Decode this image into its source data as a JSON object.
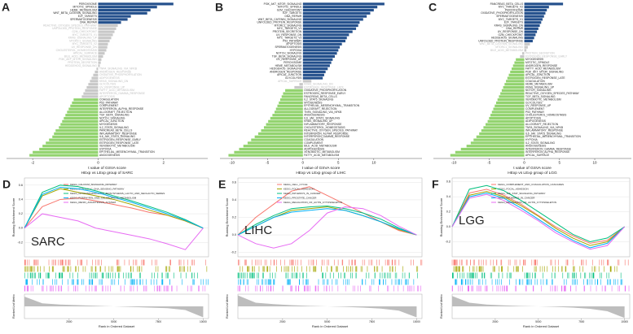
{
  "chart_data": [
    {
      "type": "bar",
      "orientation": "horizontal",
      "panel": "A",
      "xlabel": "t value of GSVA score",
      "sublabel": "HExp vs LExp group of SARC",
      "xlim": [
        -2.8,
        3.35
      ],
      "xticks": [
        -2,
        0,
        2
      ],
      "series": [
        {
          "color": "#24508c",
          "label_color": "#222222",
          "categories": [
            "PEROXISOME",
            "MITOTIC_SPINDLE",
            "HEME_METABOLISM",
            "WNT_BETA_CATENIN_SIGNALING",
            "E2F_TARGETS",
            "SPERMATOGENESIS",
            "DNA_REPAIR"
          ],
          "values": [
            2.3,
            1.8,
            1.6,
            1.5,
            1.0,
            0.9,
            0.7
          ]
        },
        {
          "color": "#c8c8c8",
          "label_color": "#bdbdbd",
          "categories": [
            "REACTIVE_OXYGEN_SPECIES_PATHWAY",
            "UNFOLDED_PROTEIN_RESPONSE",
            "G2M_CHECKPOINT",
            "MYC_TARGETS_V1",
            "KRAS_SIGNALING_UP",
            "MTORC1_SIGNALING",
            "MYC_TARGETS_V2",
            "UV_RESPONSE_DN",
            "CHOLESTEROL_HOMEOSTASIS",
            "APICAL_SURFACE",
            "BILE_ACID_METABOLISM",
            "PI3K_AKT_MTOR_SIGNALING",
            "PROTEIN_SECRETION",
            "HEDGEHOG_SIGNALING",
            "TNFA_SIGNALING_VIA_NFKB",
            "ANDROGEN_RESPONSE",
            "OXIDATIVE_PHOSPHORYLATION",
            "ADIPOGENESIS",
            "KRAS_SIGNALING_DN",
            "GLYCOLYSIS",
            "UV_RESPONSE_UP",
            "FATTY_ACID_METABOLISM",
            "INTERFERON_GAMMA_RESPONSE",
            "APOPTOSIS"
          ],
          "values": [
            0.6,
            0.55,
            0.5,
            0.45,
            0.4,
            0.35,
            0.3,
            0.28,
            0.25,
            0.2,
            0.15,
            0.1,
            0.08,
            0.05,
            -0.05,
            -0.1,
            -0.15,
            -0.2,
            -0.25,
            -0.3,
            -0.35,
            -0.4,
            -0.45,
            -0.5
          ]
        },
        {
          "color": "#92d36e",
          "label_color": "#222222",
          "categories": [
            "COAGULATION",
            "P53_PATHWAY",
            "COMPLEMENT",
            "INTERFERON_ALPHA_RESPONSE",
            "ALLOGRAFT_REJECTION",
            "TGF_BETA_SIGNALING",
            "NOTCH_SIGNALING",
            "APICAL_JUNCTION",
            "MYOGENESIS",
            "IL2_STAT5_SIGNALING",
            "PANCREAS_BETA_CELLS",
            "INFLAMMATORY_RESPONSE",
            "IL6_JAK_STAT3_SIGNALING",
            "ESTROGEN_RESPONSE_EARLY",
            "ESTROGEN_RESPONSE_LATE",
            "XENOBIOTIC_METABOLISM",
            "HYPOXIA",
            "EPITHELIAL_MESENCHYMAL_TRANSITION",
            "ANGIOGENESIS"
          ],
          "values": [
            -0.75,
            -0.8,
            -0.85,
            -0.9,
            -0.95,
            -1.0,
            -1.05,
            -1.1,
            -1.15,
            -1.2,
            -1.3,
            -1.35,
            -1.4,
            -1.5,
            -1.6,
            -1.7,
            -1.8,
            -2.0,
            -2.1
          ]
        }
      ]
    },
    {
      "type": "bar",
      "orientation": "horizontal",
      "panel": "B",
      "xlabel": "t value of GSVA score",
      "sublabel": "HExp vs LExp group of LIHC",
      "xlim": [
        -11.7,
        16.8
      ],
      "xticks": [
        -10,
        -5,
        0,
        5,
        10
      ],
      "series": [
        {
          "color": "#24508c",
          "label_color": "#222222",
          "categories": [
            "PI3K_AKT_MTOR_SIGNALING",
            "MITOTIC_SPINDLE",
            "G2M_CHECKPOINT",
            "E2F_TARGETS",
            "DNA_REPAIR",
            "WNT_BETA_CATENIN_SIGNALING",
            "UNFOLDED_PROTEIN_RESPONSE",
            "MTORC1_SIGNALING",
            "MYC_TARGETS_V1",
            "PROTEIN_SECRETION",
            "UV_RESPONSE_DN",
            "MYC_TARGETS_V2",
            "P53_PATHWAY",
            "APOPTOSIS",
            "SPERMATOGENESIS",
            "HYPOXIA",
            "NOTCH_SIGNALING",
            "TGF_BETA_SIGNALING",
            "UV_RESPONSE_UP",
            "PEROXISOME",
            "HEME_METABOLISM",
            "HEDGEHOG_SIGNALING",
            "ANDROGEN_RESPONSE",
            "APICAL_JUNCTION",
            "GLYCOLYSIS"
          ],
          "values": [
            11.5,
            10.5,
            10,
            9.5,
            9,
            8.5,
            8,
            7.8,
            7.5,
            7,
            6.5,
            6.2,
            6,
            5.5,
            5.2,
            5,
            4.8,
            4.5,
            4.2,
            4,
            3.8,
            3.5,
            3.2,
            3,
            2.8
          ]
        },
        {
          "color": "#c8c8c8",
          "label_color": "#bdbdbd",
          "categories": [
            "APICAL_SURFACE",
            "KRAS_SIGNALING_DN",
            "ESTROGEN_RESPONSE_LATE"
          ],
          "values": [
            1.2,
            -0.5,
            -1.2
          ]
        },
        {
          "color": "#92d36e",
          "label_color": "#222222",
          "categories": [
            "OXIDATIVE_PHOSPHORYLATION",
            "ESTROGEN_RESPONSE_EARLY",
            "PANCREAS_BETA_CELLS",
            "IL2_STAT5_SIGNALING",
            "MYOGENESIS",
            "EPITHELIAL_MESENCHYMAL_TRANSITION",
            "ALLOGRAFT_REJECTION",
            "TNFA_SIGNALING_VIA_NFKB",
            "ANGIOGENESIS",
            "IL6_JAK_STAT3_SIGNALING",
            "KRAS_SIGNALING_UP",
            "INFLAMMATORY_RESPONSE",
            "CHOLESTEROL_HOMEOSTASIS",
            "REACTIVE_OXYGEN_SPECIES_PATHWAY",
            "INTERFERON_ALPHA_RESPONSE",
            "INTERFERON_GAMMA_RESPONSE",
            "COAGULATION",
            "COMPLEMENT",
            "BILE_ACID_METABOLISM",
            "ADIPOGENESIS",
            "XENOBIOTIC_METABOLISM",
            "FATTY_ACID_METABOLISM"
          ],
          "values": [
            -2.5,
            -2.8,
            -3.0,
            -3.2,
            -3.4,
            -3.6,
            -3.8,
            -4,
            -4.3,
            -4.6,
            -4.9,
            -5.2,
            -5.5,
            -5.9,
            -6.3,
            -6.8,
            -7.3,
            -7.8,
            -8.4,
            -9,
            -9.7,
            -10.5
          ]
        }
      ]
    },
    {
      "type": "bar",
      "orientation": "horizontal",
      "panel": "C",
      "xlabel": "t value of GSVA score",
      "sublabel": "HExp vs LExp group of LGG",
      "xlim": [
        -12.9,
        15.2
      ],
      "xticks": [
        -10,
        -5,
        0,
        5,
        10
      ],
      "series": [
        {
          "color": "#24508c",
          "label_color": "#222222",
          "categories": [
            "PANCREAS_BETA_CELLS",
            "MYC_TARGETS_V2",
            "PEROXISOME",
            "OXIDATIVE_PHOSPHORYLATION",
            "SPERMATOGENESIS",
            "MYC_TARGETS_V1",
            "E2F_TARGETS",
            "KRAS_SIGNALING_DN",
            "DNA_REPAIR",
            "UV_RESPONSE_DN",
            "G2M_CHECKPOINT",
            "HEDGEHOG_SIGNALING",
            "UNFOLDED_PROTEIN_RESPONSE"
          ],
          "values": [
            5.5,
            3.5,
            3.2,
            3.0,
            2.8,
            2.6,
            2.4,
            2.2,
            2.0,
            1.8,
            1.6,
            1.4,
            1.2
          ]
        },
        {
          "color": "#c8c8c8",
          "label_color": "#bdbdbd",
          "categories": [
            "WNT_BETA_CATENIN_SIGNALING",
            "MTORC1_SIGNALING",
            "BILE_ACID_METABOLISM",
            "PROTEIN_SECRETION",
            "ESTROGEN_RESPONSE_EARLY"
          ],
          "values": [
            0.8,
            0.5,
            0.3,
            -0.3,
            -0.6
          ]
        },
        {
          "color": "#92d36e",
          "label_color": "#222222",
          "categories": [
            "MYOGENESIS",
            "MITOTIC_SPINDLE",
            "ANDROGEN_RESPONSE",
            "FATTY_ACID_METABOLISM",
            "PI3K_AKT_MTOR_SIGNALING",
            "APICAL_JUNCTION",
            "ESTROGEN_RESPONSE_LATE",
            "COAGULATION",
            "HEME_METABOLISM",
            "KRAS_SIGNALING_UP",
            "NOTCH_SIGNALING",
            "REACTIVE_OXYGEN_SPECIES_PATHWAY",
            "TGF_BETA_SIGNALING",
            "XENOBIOTIC_METABOLISM",
            "GLYCOLYSIS",
            "UV_RESPONSE_UP",
            "COMPLEMENT",
            "P53_PATHWAY",
            "CHOLESTEROL_HOMEOSTASIS",
            "APOPTOSIS",
            "ADIPOGENESIS",
            "ALLOGRAFT_REJECTION",
            "TNFA_SIGNALING_VIA_NFKB",
            "INFLAMMATORY_RESPONSE",
            "IL6_JAK_STAT3_SIGNALING",
            "EPITHELIAL_MESENCHYMAL_TRANSITION",
            "HYPOXIA",
            "IL2_STAT5_SIGNALING",
            "ANGIOGENESIS",
            "INTERFERON_GAMMA_RESPONSE",
            "INTERFERON_ALPHA_RESPONSE",
            "APICAL_SURFACE"
          ],
          "values": [
            -1.2,
            -1.4,
            -1.6,
            -1.8,
            -2.0,
            -2.2,
            -2.4,
            -2.6,
            -2.8,
            -3.0,
            -3.2,
            -3.4,
            -3.6,
            -3.8,
            -4.0,
            -4.2,
            -4.4,
            -4.6,
            -4.8,
            -5.0,
            -5.2,
            -5.5,
            -5.8,
            -6.1,
            -6.4,
            -6.8,
            -7.2,
            -7.6,
            -8.2,
            -9,
            -9.8,
            -10.5
          ]
        }
      ]
    },
    {
      "type": "gsea",
      "panel": "D",
      "label": "SARC",
      "ylabel": "Running Enrichment Score",
      "metric_label": "Ranked List Metric",
      "xlabel": "Rank in Ordered Dataset",
      "x": [
        0,
        1000,
        2000,
        3000,
        4000,
        5000,
        6000,
        7000,
        8000,
        9000,
        10000
      ],
      "xlim": [
        0,
        10300
      ],
      "xticks": [
        2500,
        5000,
        7500,
        10000
      ],
      "ylim": [
        -0.4,
        0.7
      ],
      "yticks": [
        -0.2,
        {
          "value": 0,
          "label": "0.0"
        },
        0.2,
        0.4,
        0.6
      ],
      "series": [
        {
          "name": "KEGG_CALCIUM_SIGNALING_PATHWAY",
          "color": "#f8766d",
          "values": [
            0,
            0.3,
            0.4,
            0.42,
            0.38,
            0.33,
            0.28,
            0.22,
            0.18,
            0.1,
            0
          ]
        },
        {
          "name": "KEGG_CYTOSOLIC_DNA_SENSING_PATHWAY",
          "color": "#a3a500",
          "values": [
            0,
            0.45,
            0.55,
            0.5,
            0.45,
            0.4,
            0.33,
            0.25,
            0.18,
            0.1,
            0
          ]
        },
        {
          "name": "KEGG_GLYCOSPHINGOLIPID_BIOSYNTHESIS_LACTO_AND_NEOLACTO_SERIES",
          "color": "#00bf7d",
          "values": [
            0,
            0.5,
            0.6,
            0.58,
            0.52,
            0.45,
            0.38,
            0.3,
            0.22,
            0.12,
            0
          ]
        },
        {
          "name": "KEGG_PORPHYRIN_AND_CHLOROPHYLL_METABOLISM",
          "color": "#00b0f6",
          "values": [
            0,
            0.47,
            0.57,
            0.55,
            0.5,
            0.43,
            0.36,
            0.28,
            0.2,
            0.11,
            0
          ]
        },
        {
          "name": "KEGG_RENIN_ANGIOTENSIN_SYSTEM",
          "color": "#e76bf3",
          "values": [
            0,
            0.2,
            0.15,
            0.1,
            0.0,
            -0.05,
            -0.1,
            -0.15,
            -0.22,
            -0.3,
            0
          ]
        }
      ],
      "metric": [
        0.8,
        0.25,
        0.15,
        0.1,
        0.05,
        0,
        -0.05,
        -0.1,
        -0.15,
        -0.3,
        -0.9
      ],
      "metric_ylim": [
        -1,
        1
      ]
    },
    {
      "type": "gsea",
      "panel": "E",
      "label": "LIHC",
      "ylabel": "Running Enrichment Score",
      "metric_label": "Ranked List Metric",
      "xlabel": "Rank in Ordered Dataset",
      "x": [
        0,
        1000,
        2000,
        3000,
        4000,
        5000,
        6000,
        7000,
        8000,
        9000,
        10000
      ],
      "xlim": [
        0,
        10300
      ],
      "xticks": [
        2500,
        5000,
        7500,
        10000
      ],
      "ylim": [
        -0.25,
        0.65
      ],
      "yticks": [
        -0.2,
        {
          "value": 0,
          "label": "0.0"
        },
        0.2,
        0.4,
        0.6
      ],
      "series": [
        {
          "name": "KEGG_CELL_CYCLE",
          "color": "#f8766d",
          "values": [
            0,
            0.2,
            0.35,
            0.5,
            0.55,
            0.45,
            0.35,
            0.25,
            0.15,
            0.05,
            0
          ]
        },
        {
          "name": "KEGG_FOCAL_ADHESION",
          "color": "#a3a500",
          "values": [
            0,
            0.1,
            0.2,
            0.28,
            0.3,
            0.32,
            0.28,
            0.22,
            0.15,
            0.06,
            0
          ]
        },
        {
          "name": "KEGG_PATHWAYS_IN_CANCER",
          "color": "#00bf7d",
          "values": [
            0,
            0.12,
            0.22,
            0.3,
            0.32,
            0.33,
            0.3,
            0.25,
            0.18,
            0.08,
            0
          ]
        },
        {
          "name": "KEGG_PROSTATE_CANCER",
          "color": "#00b0f6",
          "values": [
            0,
            0.1,
            0.2,
            0.26,
            0.28,
            0.3,
            0.28,
            0.22,
            0.15,
            0.07,
            0
          ]
        },
        {
          "name": "KEGG_REGULATION_OF_ACTIN_CYTOSKELETON",
          "color": "#e76bf3",
          "values": [
            0,
            -0.1,
            -0.15,
            -0.1,
            0.05,
            0.25,
            0.32,
            0.3,
            0.22,
            0.1,
            0
          ]
        }
      ],
      "metric": [
        0.9,
        0.3,
        0.18,
        0.1,
        0.04,
        0,
        -0.04,
        -0.1,
        -0.18,
        -0.35,
        -0.9
      ],
      "metric_ylim": [
        -1,
        1
      ]
    },
    {
      "type": "gsea",
      "panel": "F",
      "label": "LGG",
      "ylabel": "Running Enrichment Score",
      "metric_label": "Ranked List Metric",
      "xlabel": "Rank in Ordered Dataset",
      "x": [
        0,
        1000,
        2000,
        3000,
        4000,
        5000,
        6000,
        7000,
        8000,
        9000,
        10000
      ],
      "xlim": [
        0,
        10300
      ],
      "xticks": [
        2500,
        5000,
        7500,
        10000
      ],
      "ylim": [
        -0.4,
        0.65
      ],
      "yticks": [
        -0.2,
        {
          "value": 0,
          "label": "0.0"
        },
        0.2,
        0.4,
        0.6
      ],
      "series": [
        {
          "name": "KEGG_COMPLEMENT_AND_COAGULATION_CASCADES",
          "color": "#f8766d",
          "values": [
            0,
            0.45,
            0.5,
            0.42,
            0.3,
            0.15,
            0,
            -0.12,
            -0.22,
            -0.18,
            0
          ]
        },
        {
          "name": "KEGG_FOCAL_ADHESION",
          "color": "#a3a500",
          "values": [
            0,
            0.42,
            0.47,
            0.4,
            0.28,
            0.14,
            -0.02,
            -0.15,
            -0.25,
            -0.2,
            0
          ]
        },
        {
          "name": "KEGG_JAK_STAT_SIGNALING_PATHWAY",
          "color": "#00bf7d",
          "values": [
            0,
            0.5,
            0.55,
            0.48,
            0.35,
            0.2,
            0.05,
            -0.1,
            -0.2,
            -0.15,
            0
          ]
        },
        {
          "name": "KEGG_PATHWAYS_IN_CANCER",
          "color": "#00b0f6",
          "values": [
            0,
            0.4,
            0.45,
            0.38,
            0.25,
            0.1,
            -0.05,
            -0.18,
            -0.28,
            -0.22,
            0
          ]
        },
        {
          "name": "KEGG_REGULATION_OF_ACTIN_CYTOSKELETON",
          "color": "#e76bf3",
          "values": [
            0,
            0.38,
            0.43,
            0.35,
            0.22,
            0.08,
            -0.08,
            -0.2,
            -0.3,
            -0.25,
            0
          ]
        }
      ],
      "metric": [
        0.85,
        0.3,
        0.15,
        0.08,
        0.03,
        0,
        -0.04,
        -0.1,
        -0.2,
        -0.4,
        -0.95
      ],
      "metric_ylim": [
        -1,
        1
      ]
    }
  ]
}
